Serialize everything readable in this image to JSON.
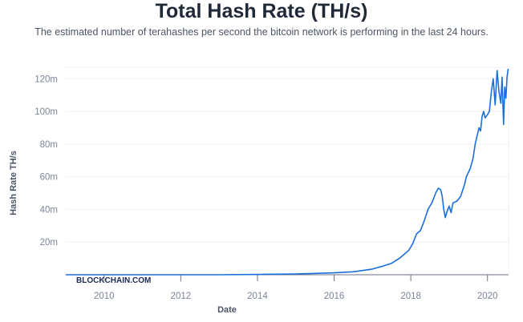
{
  "header": {
    "title": "Total Hash Rate (TH/s)",
    "subtitle": "The estimated number of terahashes per second the bitcoin network is performing in the last 24 hours."
  },
  "watermark": "BLOCKCHAIN.COM",
  "colors": {
    "line": "#1a6fdc",
    "grid": "#eef0f3",
    "axis": "#6b7280"
  },
  "chart_data": {
    "type": "line",
    "title": "Total Hash Rate (TH/s)",
    "xlabel": "Date",
    "ylabel": "Hash Rate TH/s",
    "xlim": [
      2009.0,
      2020.55
    ],
    "ylim": [
      0,
      127000000
    ],
    "x_ticks": [
      2010,
      2012,
      2014,
      2016,
      2018,
      2020
    ],
    "x_tick_labels": [
      "2010",
      "2012",
      "2014",
      "2016",
      "2018",
      "2020"
    ],
    "y_ticks": [
      20000000,
      40000000,
      60000000,
      80000000,
      100000000,
      120000000
    ],
    "y_tick_labels": [
      "20m",
      "40m",
      "60m",
      "80m",
      "100m",
      "120m"
    ],
    "grid": true,
    "series": [
      {
        "x": [
          2009.0,
          2011.0,
          2013.0,
          2014.0,
          2015.0,
          2016.0,
          2016.5,
          2017.0,
          2017.3,
          2017.5,
          2017.7,
          2017.85,
          2017.95,
          2018.05,
          2018.15,
          2018.25,
          2018.35,
          2018.45,
          2018.55,
          2018.65,
          2018.72,
          2018.78,
          2018.82,
          2018.86,
          2018.9,
          2018.95,
          2019.0,
          2019.05,
          2019.1,
          2019.2,
          2019.3,
          2019.4,
          2019.45,
          2019.55,
          2019.62,
          2019.68,
          2019.72,
          2019.78,
          2019.82,
          2019.86,
          2019.9,
          2019.94,
          2020.0,
          2020.05,
          2020.1,
          2020.15,
          2020.2,
          2020.25,
          2020.3,
          2020.35,
          2020.38,
          2020.42,
          2020.45,
          2020.48,
          2020.51,
          2020.54
        ],
        "y": [
          0,
          0,
          20000,
          200000,
          500000,
          1200000,
          1800000,
          3500000,
          5500000,
          7000000,
          10000000,
          13000000,
          15000000,
          19000000,
          25000000,
          27000000,
          33000000,
          40000000,
          44000000,
          50000000,
          53000000,
          52000000,
          48000000,
          40000000,
          35000000,
          39000000,
          42000000,
          38000000,
          44000000,
          45000000,
          48000000,
          55000000,
          60000000,
          65000000,
          71000000,
          80000000,
          84000000,
          90000000,
          88000000,
          97000000,
          100000000,
          96000000,
          98000000,
          100000000,
          112000000,
          120000000,
          104000000,
          125000000,
          112000000,
          105000000,
          121000000,
          92000000,
          115000000,
          108000000,
          121000000,
          126000000
        ]
      }
    ]
  }
}
